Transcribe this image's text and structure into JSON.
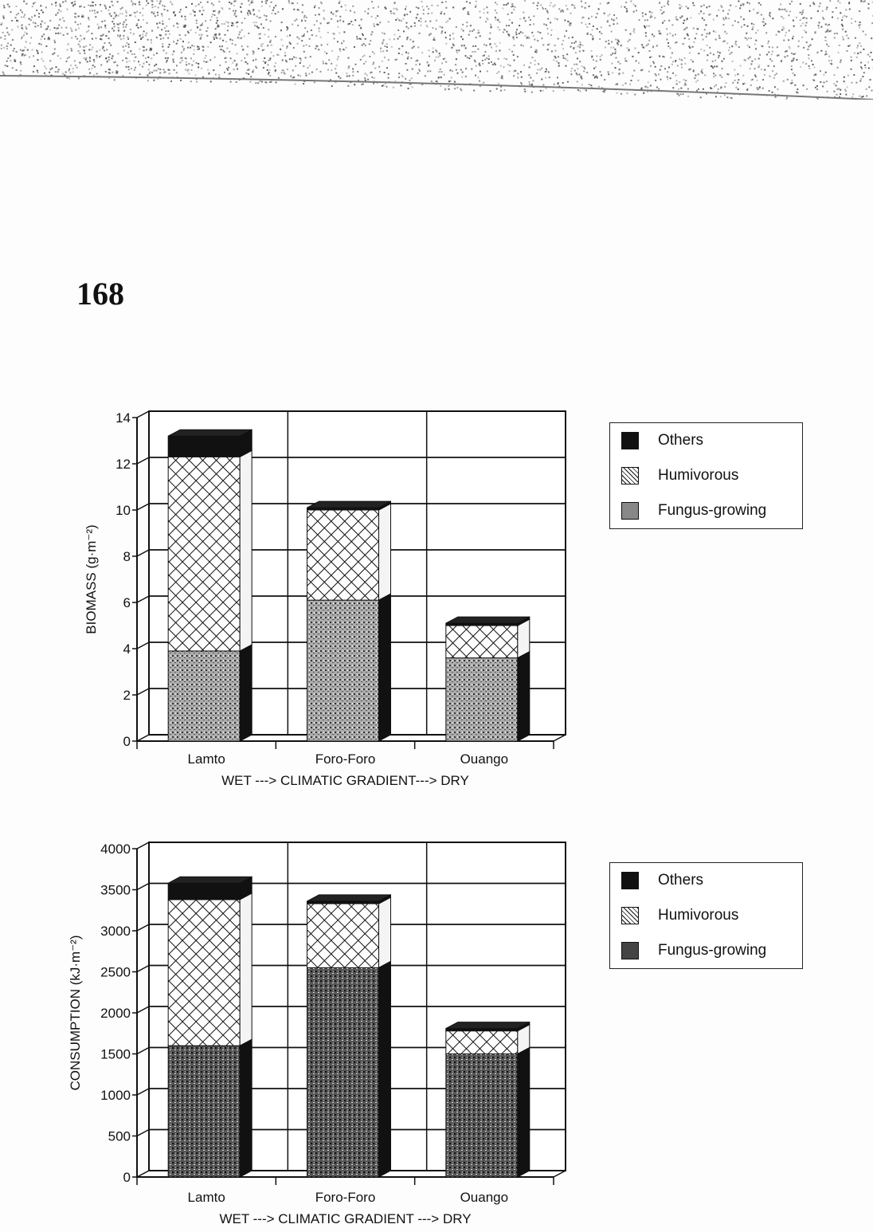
{
  "page_number": "168",
  "legend_items": [
    "Others",
    "Humivorous",
    "Fungus-growing"
  ],
  "chart_data": [
    {
      "type": "bar",
      "stacked": true,
      "style": "3d",
      "categories": [
        "Lamto",
        "Foro-Foro",
        "Ouango"
      ],
      "xlabel": "WET ---> CLIMATIC GRADIENT---> DRY",
      "ylabel": "BIOMASS (g·m⁻²)",
      "ylim": [
        0,
        14
      ],
      "yticks": [
        "0",
        "2",
        "4",
        "6",
        "8",
        "10",
        "12",
        "14"
      ],
      "grid": true,
      "legend": "right",
      "series": [
        {
          "name": "Fungus-growing",
          "values": [
            3.9,
            6.1,
            3.6
          ]
        },
        {
          "name": "Humivorous",
          "values": [
            8.4,
            3.9,
            1.4
          ]
        },
        {
          "name": "Others",
          "values": [
            0.9,
            0.1,
            0.1
          ]
        }
      ]
    },
    {
      "type": "bar",
      "stacked": true,
      "style": "3d",
      "categories": [
        "Lamto",
        "Foro-Foro",
        "Ouango"
      ],
      "xlabel": "WET ---> CLIMATIC GRADIENT ---> DRY",
      "ylabel": "CONSUMPTION (kJ·m⁻²)",
      "ylim": [
        0,
        4000
      ],
      "yticks": [
        "0",
        "500",
        "1000",
        "1500",
        "2000",
        "2500",
        "3000",
        "3500",
        "4000"
      ],
      "grid": true,
      "legend": "right",
      "series": [
        {
          "name": "Fungus-growing",
          "values": [
            1600,
            2550,
            1500
          ]
        },
        {
          "name": "Humivorous",
          "values": [
            1780,
            780,
            280
          ]
        },
        {
          "name": "Others",
          "values": [
            200,
            30,
            30
          ]
        }
      ]
    }
  ]
}
